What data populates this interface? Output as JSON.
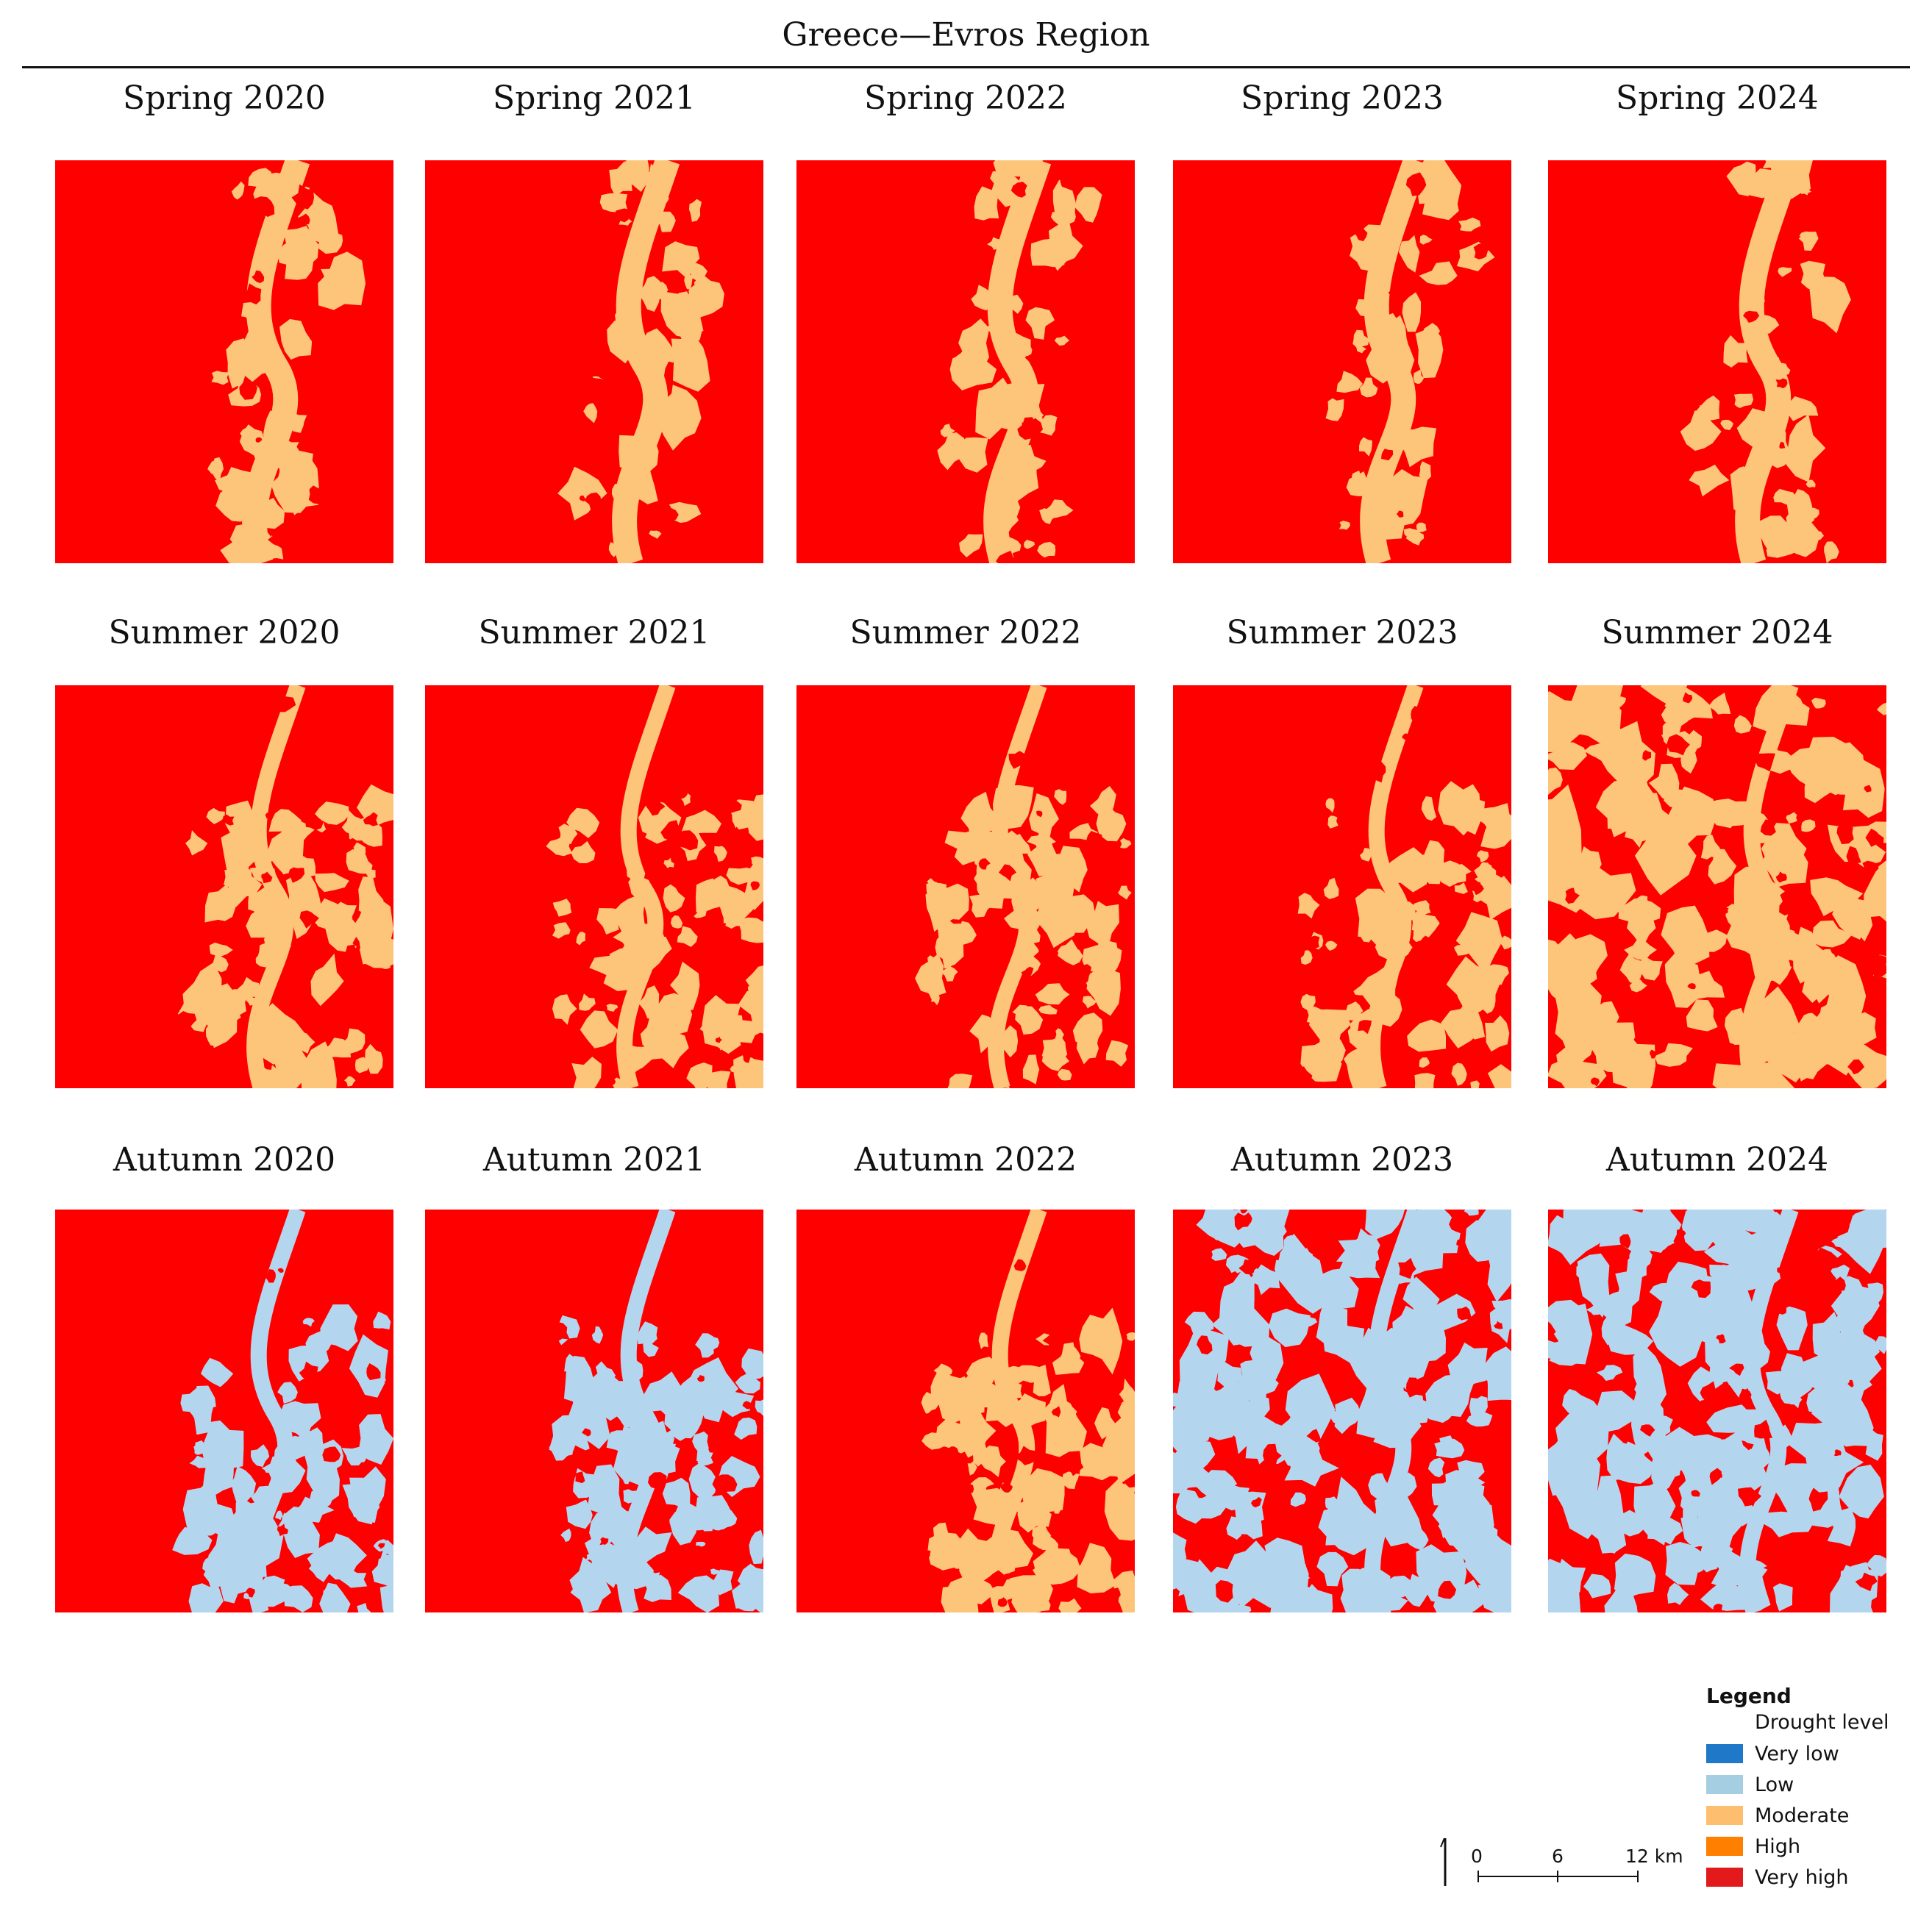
{
  "title": "Greece—Evros Region",
  "panels": [
    {
      "label": "Spring 2020",
      "scheme": "spring"
    },
    {
      "label": "Spring 2021",
      "scheme": "spring"
    },
    {
      "label": "Spring 2022",
      "scheme": "spring"
    },
    {
      "label": "Spring 2023",
      "scheme": "spring"
    },
    {
      "label": "Spring 2024",
      "scheme": "spring"
    },
    {
      "label": "Summer 2020",
      "scheme": "summer"
    },
    {
      "label": "Summer 2021",
      "scheme": "summer"
    },
    {
      "label": "Summer 2022",
      "scheme": "summer"
    },
    {
      "label": "Summer 2023",
      "scheme": "summer"
    },
    {
      "label": "Summer 2024",
      "scheme": "summer-heavy"
    },
    {
      "label": "Autumn 2020",
      "scheme": "autumn-low"
    },
    {
      "label": "Autumn 2021",
      "scheme": "autumn-low"
    },
    {
      "label": "Autumn 2022",
      "scheme": "autumn-moderate"
    },
    {
      "label": "Autumn 2023",
      "scheme": "autumn-low-heavy"
    },
    {
      "label": "Autumn 2024",
      "scheme": "autumn-low-heavy"
    }
  ],
  "legend": {
    "heading": "Legend",
    "subheading": "Drought level",
    "items": [
      {
        "label": "Very low",
        "color": "#1f78c8"
      },
      {
        "label": "Low",
        "color": "#a6cee3"
      },
      {
        "label": "Moderate",
        "color": "#fdbf6f"
      },
      {
        "label": "High",
        "color": "#ff7f00"
      },
      {
        "label": "Very high",
        "color": "#e31a1c"
      }
    ]
  },
  "scale_bar": {
    "ticks": [
      "0",
      "6",
      "12 km"
    ]
  },
  "colors": {
    "very_high_fill": "#ff0000",
    "moderate_fill": "#fcc57a",
    "low_fill": "#b3d6ee"
  }
}
